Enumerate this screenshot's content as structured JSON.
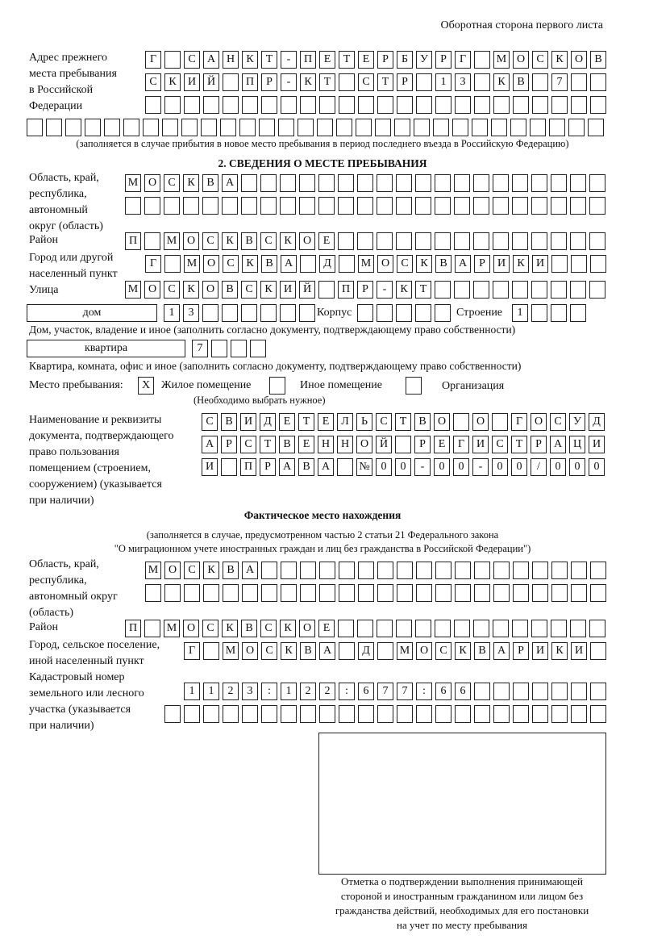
{
  "header": "Оборотная сторона первого листа",
  "prev_address": {
    "label": [
      "Адрес прежнего",
      "места пребывания",
      "в Российской",
      "Федерации"
    ],
    "rows": [
      "Г САНКТ-ПЕТЕРБУРГ МОСКОВ",
      "СКИЙ ПР-КТ СТР 13 КВ 7  ",
      "                        ",
      "                              "
    ],
    "note": "(заполняется в случае прибытия в новое место пребывания в период последнего въезда в Российскую Федерацию)"
  },
  "section2": {
    "title": "2. СВЕДЕНИЯ О МЕСТЕ ПРЕБЫВАНИЯ",
    "region_label": [
      "Область, край,",
      "республика,",
      "автономный",
      "округ (область)"
    ],
    "region_rows": [
      "МОСКВА                   ",
      "                         "
    ],
    "district_label": "Район",
    "district_row": "П МОСКВСКОЕ              ",
    "city_label": [
      "Город или другой",
      "населенный пункт"
    ],
    "city_row": "Г МОСКВА Д МОСКВАРИКИ   ",
    "street_label": "Улица",
    "street_row": "МОСКОВСКИЙ ПР-КТ         ",
    "house_type": "дом",
    "house_row": "13      ",
    "korpus_label": "Корпус",
    "korpus_row": "     ",
    "stroenie_label": "Строение",
    "stroenie_row": "1   ",
    "house_note": "Дом, участок, владение и иное (заполнить согласно документу, подтверждающему право собственности)",
    "flat_type": "квартира",
    "flat_row": "7   ",
    "flat_note": "Квартира, комната, офис и иное (заполнить согласно документу, подтверждающему право собственности)",
    "stay_label": "Место пребывания:",
    "stay_options": [
      {
        "label": "Жилое помещение",
        "mark": "X"
      },
      {
        "label": "Иное помещение",
        "mark": ""
      },
      {
        "label": "Организация",
        "mark": ""
      }
    ],
    "stay_note": "(Необходимо выбрать нужное)",
    "doc_label": [
      "Наименование и реквизиты",
      "документа, подтверждающего",
      "право пользования",
      "помещением (строением,",
      "сооружением) (указывается",
      "при наличии)"
    ],
    "doc_rows": [
      "СВИДЕТЕЛЬСТВО О ГОСУД",
      "АРСТВЕННОЙ РЕГИСТРАЦИ",
      "И ПРАВА №00-00-00/000"
    ]
  },
  "actual": {
    "title": "Фактическое место нахождения",
    "note": [
      "(заполняется в случае, предусмотренном частью 2 статьи 21 Федерального закона",
      "\"О миграционном учете иностранных граждан и лиц без гражданства в Российской Федерации\")"
    ],
    "region_label": [
      "Область, край,",
      "республика,",
      "автономный округ",
      "(область)"
    ],
    "region_rows": [
      "МОСКВА                  ",
      "                        "
    ],
    "district_label": "Район",
    "district_row": "П МОСКВСКОЕ              ",
    "city_label": [
      "Город, сельское поселение,",
      "иной населенный пункт"
    ],
    "city_row": "Г МОСКВА Д МОСКВАРИКИ ",
    "cadastre_label": [
      "Кадастровый номер",
      "земельного или лесного",
      "участка (указывается",
      "при наличии)"
    ],
    "cadastre_rows": [
      "1123:122:677:66       ",
      "                       "
    ]
  },
  "stamp_caption": [
    "Отметка о подтверждении выполнения принимающей",
    "стороной и иностранным гражданином или лицом без",
    "гражданства действий, необходимых для его постановки",
    "на учет по месту пребывания"
  ]
}
